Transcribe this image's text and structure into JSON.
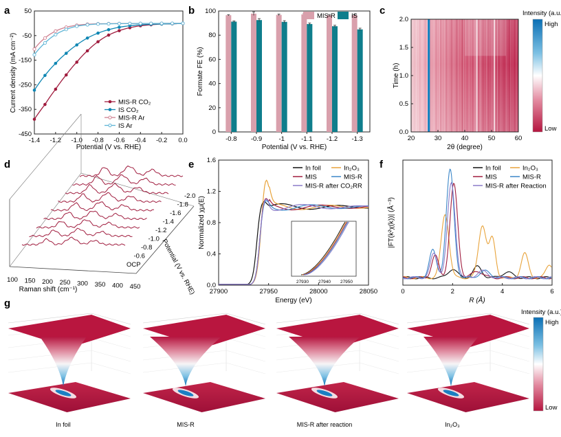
{
  "colors": {
    "misr": "#a01c3e",
    "is": "#0e86b3",
    "misr_light": "#cf8090",
    "is_light": "#5db4d6",
    "bar_misr": "#d9a0ac",
    "bar_is": "#0f7e8c",
    "heat_low": "#b5153f",
    "heat_high": "#0a7fc0"
  },
  "panel_labels": [
    "a",
    "b",
    "c",
    "d",
    "e",
    "f",
    "g"
  ],
  "chart_data": [
    {
      "id": "a",
      "type": "line",
      "xlabel": "Potential (V vs. RHE)",
      "ylabel": "Current density (mA cm⁻²)",
      "xlim": [
        -1.4,
        0.0
      ],
      "ylim": [
        -450,
        50
      ],
      "xticks": [
        "-1.4",
        "-1.2",
        "-1.0",
        "-0.8",
        "-0.6",
        "-0.4",
        "-0.2",
        "0.0"
      ],
      "yticks": [
        "50",
        "-50",
        "-150",
        "-250",
        "-350",
        "-450"
      ],
      "x": [
        -1.4,
        -1.3,
        -1.2,
        -1.1,
        -1.0,
        -0.9,
        -0.8,
        -0.7,
        -0.6,
        -0.5,
        -0.4,
        -0.3,
        -0.2,
        -0.1,
        0.0
      ],
      "series": [
        {
          "name": "MIS-R CO₂",
          "style": "solid-dot",
          "color": "#a01c3e",
          "values": [
            -390,
            -330,
            -268,
            -210,
            -158,
            -112,
            -75,
            -48,
            -30,
            -18,
            -10,
            -6,
            -3,
            -2,
            -1
          ]
        },
        {
          "name": "IS CO₂",
          "style": "solid-dot",
          "color": "#0e86b3",
          "values": [
            -272,
            -212,
            -163,
            -122,
            -88,
            -60,
            -40,
            -26,
            -16,
            -10,
            -6,
            -4,
            -3,
            -2,
            -1
          ]
        },
        {
          "name": "MIS-R Ar",
          "style": "open",
          "color": "#cf8090",
          "values": [
            -105,
            -60,
            -32,
            -16,
            -8,
            -4,
            -2,
            -1.5,
            -1,
            -1,
            -0.8,
            -0.6,
            -0.5,
            -0.3,
            -0.2
          ]
        },
        {
          "name": "IS Ar",
          "style": "open",
          "color": "#5db4d6",
          "values": [
            -128,
            -80,
            -46,
            -25,
            -12,
            -6,
            -3,
            -2,
            -1.5,
            -1,
            -0.8,
            -0.6,
            -0.5,
            -0.3,
            -0.2
          ]
        }
      ]
    },
    {
      "id": "b",
      "type": "bar",
      "xlabel": "Potential (V vs. RHE)",
      "ylabel": "Formate FE (%)",
      "ylim": [
        0,
        100
      ],
      "yticks": [
        "0",
        "20",
        "40",
        "60",
        "80",
        "100"
      ],
      "categories": [
        "-0.8",
        "-0.9",
        "-1",
        "-1.1",
        "-1.2",
        "-1.3"
      ],
      "series": [
        {
          "name": "MIS-R",
          "values": [
            96.5,
            97.8,
            96.8,
            97.2,
            96.5,
            96.6
          ],
          "errors": [
            0.5,
            1.5,
            0.7,
            0.6,
            0.6,
            0.6
          ]
        },
        {
          "name": "IS",
          "values": [
            91.2,
            92.5,
            91.0,
            89.2,
            87.4,
            84.8
          ],
          "errors": [
            0.6,
            1.2,
            1.0,
            0.9,
            0.8,
            1.0
          ]
        }
      ]
    },
    {
      "id": "c",
      "type": "heatmap",
      "xlabel": "2θ (degree)",
      "ylabel": "Time (h)",
      "xlim": [
        20,
        60
      ],
      "ylim": [
        0.0,
        2.0
      ],
      "xticks": [
        "20",
        "30",
        "40",
        "50",
        "60"
      ],
      "yticks": [
        "0.0",
        "0.5",
        "1.0",
        "1.5",
        "2.0"
      ],
      "colorbar_title": "Intensity (a.u.)",
      "colorbar_high": "High",
      "colorbar_low": "Low",
      "peaks_2theta": [
        26.6,
        44.5,
        51.0
      ]
    },
    {
      "id": "d",
      "type": "line",
      "xlabel": "Raman shift (cm⁻¹)",
      "zlabel": "Potential (V vs. RHE)",
      "xticks": [
        "100",
        "150",
        "200",
        "250",
        "300",
        "350",
        "400",
        "450"
      ],
      "potentials": [
        "OCP",
        "-0.6",
        "-0.8",
        "-1.0",
        "-1.2",
        "-1.4",
        "-1.6",
        "-1.8",
        "-2.0"
      ]
    },
    {
      "id": "e",
      "type": "line",
      "xlabel": "Energy (eV)",
      "ylabel": "Normalized χμ(E)",
      "xlim": [
        27900,
        28050
      ],
      "ylim": [
        0.0,
        1.6
      ],
      "xticks": [
        "27900",
        "27950",
        "28000",
        "28050"
      ],
      "yticks": [
        "0.0",
        "0.4",
        "0.8",
        "1.2",
        "1.6"
      ],
      "inset_xticks": [
        "27930",
        "27940",
        "27950"
      ],
      "series": [
        {
          "name": "In foil",
          "color": "#111111"
        },
        {
          "name": "In₂O₃",
          "color": "#e8a33a"
        },
        {
          "name": "MIS",
          "color": "#a01c3e"
        },
        {
          "name": "MIS-R",
          "color": "#3a86c8"
        },
        {
          "name": "MIS-R after CO₂RR",
          "color": "#8a7ac8"
        }
      ]
    },
    {
      "id": "f",
      "type": "line",
      "xlabel": "R (Å)",
      "ylabel": "|FT(k²χ(k))| (Å⁻³)",
      "xlim": [
        0,
        6
      ],
      "xticks": [
        "0",
        "2",
        "4",
        "6"
      ],
      "series": [
        {
          "name": "In foil",
          "color": "#111111"
        },
        {
          "name": "In₂O₃",
          "color": "#e8a33a"
        },
        {
          "name": "MIS",
          "color": "#a01c3e"
        },
        {
          "name": "MIS-R",
          "color": "#3a86c8"
        },
        {
          "name": "MIS-R after Reaction",
          "color": "#8a7ac8"
        }
      ]
    },
    {
      "id": "g",
      "type": "surface",
      "colorbar_title": "Intensity (a.u.)",
      "colorbar_high": "High",
      "colorbar_low": "Low",
      "surfaces": [
        "In foil",
        "MIS-R",
        "MIS-R after reaction",
        "In₂O₃"
      ]
    }
  ]
}
